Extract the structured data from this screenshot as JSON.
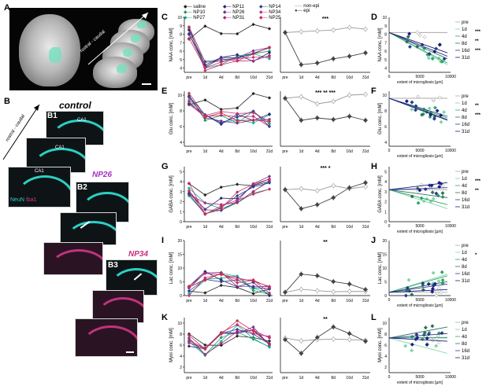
{
  "panel_letters": {
    "A": "A",
    "B": "B",
    "B1": "B1",
    "B2": "B2",
    "B3": "B3",
    "C": "C",
    "D": "D",
    "E": "E",
    "F": "F",
    "G": "G",
    "H": "H",
    "I": "I",
    "J": "J",
    "K": "K",
    "L": "L"
  },
  "panel_a": {
    "axis_label": "rostral - caudal"
  },
  "panel_b": {
    "axis_label": "rostral - caudal",
    "control": "control",
    "np26": "NP26",
    "np34": "NP34",
    "stain_neun": "NeuN",
    "stain_iba1": "Iba1",
    "ca1": "CA1"
  },
  "legend_c": {
    "col1": [
      "saline",
      "NP10",
      "NP27"
    ],
    "col2": [
      "NP11",
      "NP26",
      "NP31"
    ],
    "col3": [
      "NP14",
      "NP34",
      "NP25"
    ],
    "colors": {
      "saline": "#222222",
      "NP10": "#1f9e57",
      "NP27": "#16b39a",
      "NP11": "#24246e",
      "NP26": "#7a2f8f",
      "NP31": "#b0267a",
      "NP14": "#2b3f9e",
      "NP34": "#c6306e",
      "NP25": "#cc2c4f"
    },
    "epi": [
      "non-epi",
      "epi"
    ]
  },
  "legend_right": {
    "items": [
      "pre",
      "1d",
      "4d",
      "8d",
      "16d",
      "31d"
    ],
    "colors": [
      "#aaaaaa",
      "#7fd6a0",
      "#2aa56b",
      "#2f6e5e",
      "#2c3a8a",
      "#1a1a80"
    ]
  },
  "time_ticks": [
    "pre",
    "1d",
    "4d",
    "8d",
    "16d",
    "31d"
  ],
  "x_scatter": {
    "label": "extent of microgliosis [µm]",
    "ticks": [
      "0",
      "5000",
      "10000"
    ]
  },
  "rows": [
    {
      "left": "C",
      "right": "D",
      "ylabel": "NAA conc. [mM]",
      "yticks": [
        "4",
        "5",
        "6",
        "7",
        "8",
        "9",
        "10"
      ],
      "sig_mid": "***",
      "sig_right": [
        "***",
        "**",
        "***"
      ]
    },
    {
      "left": "E",
      "right": "F",
      "ylabel": "Glu conc. [mM]",
      "yticks": [
        "4",
        "6",
        "8",
        "10"
      ],
      "sig_mid": "*** ** ***",
      "sig_right": [
        "**",
        "***"
      ]
    },
    {
      "left": "G",
      "right": "H",
      "ylabel": "GABA conc. [mM]",
      "yticks": [
        "0",
        "1",
        "2",
        "3",
        "4",
        "5"
      ],
      "sig_mid": "*** *",
      "sig_right": [
        "***",
        "**"
      ]
    },
    {
      "left": "I",
      "right": "J",
      "ylabel": "Lac conc. [mM]",
      "yticks": [
        "0",
        "5",
        "10",
        "15",
        "20"
      ],
      "sig_mid": "**",
      "sig_right": [
        "*"
      ]
    },
    {
      "left": "K",
      "right": "L",
      "ylabel": "Myoi conc. [mM]",
      "yticks": [
        "2",
        "4",
        "6",
        "8",
        "10"
      ],
      "sig_mid": "**",
      "sig_right": []
    }
  ],
  "chart_data": [
    {
      "type": "line",
      "title": "C",
      "ylabel": "NAA conc. [mM]",
      "x": [
        "pre",
        "1d",
        "4d",
        "8d",
        "16d",
        "31d"
      ],
      "series": [
        {
          "name": "non-epi",
          "values": [
            8.2,
            8.3,
            8.4,
            8.5,
            8.8,
            8.6
          ]
        },
        {
          "name": "epi",
          "values": [
            8.2,
            4.4,
            4.6,
            5.1,
            5.4,
            5.8
          ]
        }
      ]
    },
    {
      "type": "line",
      "title": "E",
      "ylabel": "Glu conc. [mM]",
      "x": [
        "pre",
        "1d",
        "4d",
        "8d",
        "16d",
        "31d"
      ],
      "series": [
        {
          "name": "non-epi",
          "values": [
            9.6,
            9.8,
            8.9,
            9.2,
            10.0,
            10.1
          ]
        },
        {
          "name": "epi",
          "values": [
            9.6,
            6.8,
            7.1,
            6.9,
            7.3,
            6.8
          ]
        }
      ]
    },
    {
      "type": "line",
      "title": "G",
      "ylabel": "GABA conc. [mM]",
      "x": [
        "pre",
        "1d",
        "4d",
        "8d",
        "16d",
        "31d"
      ],
      "series": [
        {
          "name": "non-epi",
          "values": [
            3.2,
            3.3,
            3.1,
            3.6,
            3.3,
            3.5
          ]
        },
        {
          "name": "epi",
          "values": [
            3.2,
            1.3,
            1.7,
            2.4,
            3.4,
            3.9
          ]
        }
      ]
    },
    {
      "type": "line",
      "title": "I",
      "ylabel": "Lac conc. [mM]",
      "x": [
        "pre",
        "1d",
        "4d",
        "8d",
        "16d",
        "31d"
      ],
      "series": [
        {
          "name": "non-epi",
          "values": [
            1.2,
            2.3,
            1.8,
            1.4,
            1.5,
            1.5
          ]
        },
        {
          "name": "epi",
          "values": [
            1.2,
            7.8,
            7.2,
            5.1,
            4.2,
            2.2
          ]
        }
      ]
    },
    {
      "type": "line",
      "title": "K",
      "ylabel": "Myoi conc. [mM]",
      "x": [
        "pre",
        "1d",
        "4d",
        "8d",
        "16d",
        "31d"
      ],
      "series": [
        {
          "name": "non-epi",
          "values": [
            7.3,
            6.8,
            7.0,
            7.1,
            7.0,
            6.9
          ]
        },
        {
          "name": "epi",
          "values": [
            7.0,
            4.5,
            7.4,
            9.3,
            8.1,
            6.7
          ]
        }
      ]
    }
  ]
}
